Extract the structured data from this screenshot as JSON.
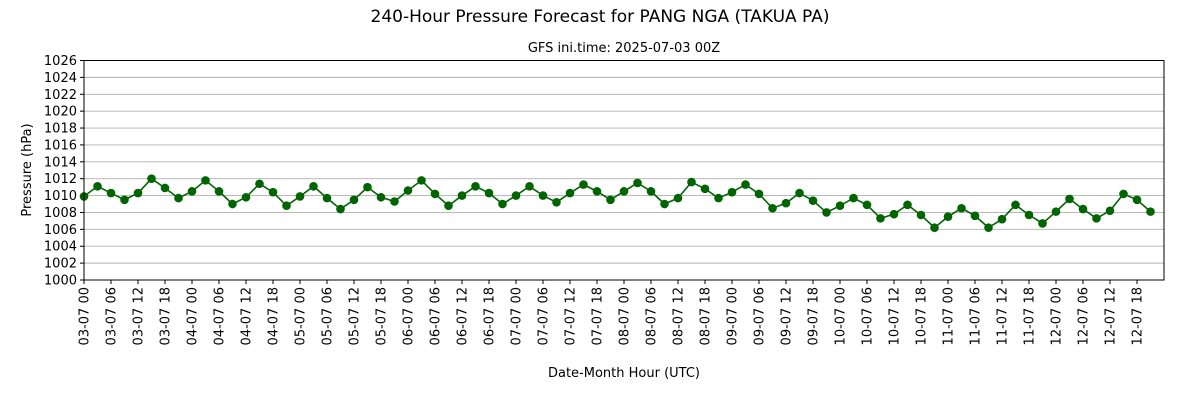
{
  "chart_data": {
    "type": "line",
    "title": "240-Hour Pressure Forecast for PANG NGA (TAKUA PA)",
    "subtitle": "GFS ini.time: 2025-07-03 00Z",
    "xlabel": "Date-Month Hour (UTC)",
    "ylabel": "Pressure (hPa)",
    "ylim": [
      1000,
      1026
    ],
    "yticks": [
      1000,
      1002,
      1004,
      1006,
      1008,
      1010,
      1012,
      1014,
      1016,
      1018,
      1020,
      1022,
      1024,
      1026
    ],
    "grid": true,
    "x_range_hours": [
      0,
      240
    ],
    "x_tick_labels": [
      "03-07 00",
      "03-07 06",
      "03-07 12",
      "03-07 18",
      "04-07 00",
      "04-07 06",
      "04-07 12",
      "04-07 18",
      "05-07 00",
      "05-07 06",
      "05-07 12",
      "05-07 18",
      "06-07 00",
      "06-07 06",
      "06-07 12",
      "06-07 18",
      "07-07 00",
      "07-07 06",
      "07-07 12",
      "07-07 18",
      "08-07 00",
      "08-07 06",
      "08-07 12",
      "08-07 18",
      "09-07 00",
      "09-07 06",
      "09-07 12",
      "09-07 18",
      "10-07 00",
      "10-07 06",
      "10-07 12",
      "10-07 18",
      "11-07 00",
      "11-07 06",
      "11-07 12",
      "11-07 18",
      "12-07 00",
      "12-07 06",
      "12-07 12",
      "12-07 18"
    ],
    "series": [
      {
        "color": "#006400",
        "x_step_hours": 3,
        "values": [
          1009.9,
          1011.1,
          1010.3,
          1009.5,
          1010.3,
          1012.0,
          1010.9,
          1009.7,
          1010.5,
          1011.8,
          1010.5,
          1009.0,
          1009.8,
          1011.4,
          1010.4,
          1008.8,
          1009.9,
          1011.1,
          1009.7,
          1008.4,
          1009.5,
          1011.0,
          1009.8,
          1009.3,
          1010.6,
          1011.8,
          1010.2,
          1008.8,
          1010.0,
          1011.1,
          1010.3,
          1009.0,
          1010.0,
          1011.1,
          1010.0,
          1009.2,
          1010.3,
          1011.3,
          1010.5,
          1009.5,
          1010.5,
          1011.5,
          1010.5,
          1009.0,
          1009.7,
          1011.6,
          1010.8,
          1009.7,
          1010.4,
          1011.3,
          1010.2,
          1008.5,
          1009.1,
          1010.3,
          1009.4,
          1008.0,
          1008.8,
          1009.7,
          1008.9,
          1007.3,
          1007.8,
          1008.9,
          1007.7,
          1006.2,
          1007.5,
          1008.5,
          1007.6,
          1006.2,
          1007.2,
          1008.9,
          1007.7,
          1006.7,
          1008.1,
          1009.6,
          1008.4,
          1007.3,
          1008.2,
          1010.2,
          1009.5,
          1008.1
        ]
      }
    ]
  }
}
